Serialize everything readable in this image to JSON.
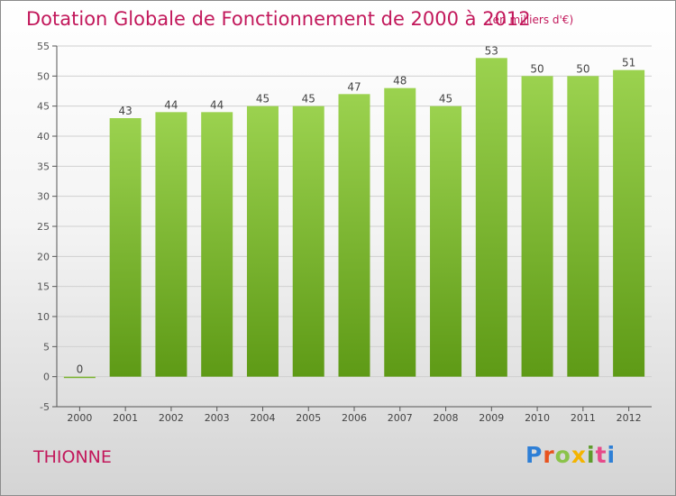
{
  "header": {
    "title": "Dotation Globale de Fonctionnement de 2000 à 2012",
    "subtitle": "(en milliers d'€)"
  },
  "commune": "THIONNE",
  "logo": {
    "text": "Proxiti",
    "letters": [
      "P",
      "r",
      "o",
      "x",
      "i",
      "t",
      "i"
    ]
  },
  "colors": {
    "title": "#c2185b",
    "bar_top": "#9bd24f",
    "bar_bottom": "#5e9a16",
    "grid": "#d0d0d0"
  },
  "chart_data": {
    "type": "bar",
    "categories": [
      "2000",
      "2001",
      "2002",
      "2003",
      "2004",
      "2005",
      "2006",
      "2007",
      "2008",
      "2009",
      "2010",
      "2011",
      "2012"
    ],
    "values": [
      0,
      43,
      44,
      44,
      45,
      45,
      47,
      48,
      45,
      53,
      50,
      50,
      51
    ],
    "data_labels": [
      "0",
      "43",
      "44",
      "44",
      "45",
      "45",
      "47",
      "48",
      "45",
      "53",
      "50",
      "50",
      "51"
    ],
    "ylim": [
      -5,
      55
    ],
    "yticks": [
      -5,
      0,
      5,
      10,
      15,
      20,
      25,
      30,
      35,
      40,
      45,
      50,
      55
    ],
    "grid": true,
    "xlabel": "",
    "ylabel": ""
  }
}
